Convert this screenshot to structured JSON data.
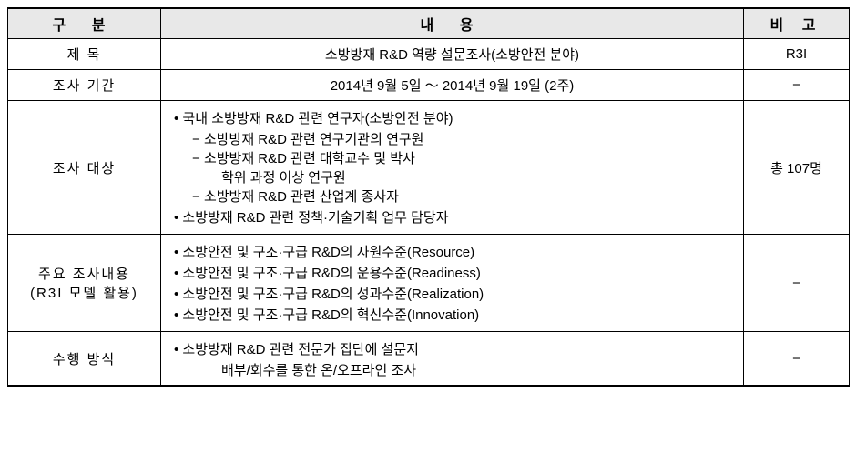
{
  "header": {
    "col1": "구 분",
    "col2": "내 용",
    "col3": "비 고"
  },
  "rows": [
    {
      "label": "제  목",
      "content_center": "소방방재 R&D 역량 설문조사(소방안전 분야)",
      "note": "R3I"
    },
    {
      "label": "조사 기간",
      "content_center": "2014년 9월 5일 ～ 2014년 9월 19일 (2주)",
      "note": "−"
    },
    {
      "label": "조사 대상",
      "bullets": [
        {
          "type": "bullet",
          "text": "국내 소방방재 R&D 관련 연구자(소방안전 분야)"
        },
        {
          "type": "sub",
          "text": "소방방재 R&D 관련 연구기관의 연구원"
        },
        {
          "type": "sub",
          "text": "소방방재 R&D 관련 대학교수 및 박사"
        },
        {
          "type": "subsub",
          "text": "학위 과정 이상 연구원"
        },
        {
          "type": "sub",
          "text": "소방방재 R&D 관련 산업계 종사자"
        },
        {
          "type": "bullet",
          "text": "소방방재 R&D 관련 정책·기술기획 업무 담당자"
        }
      ],
      "note": "총 107명"
    },
    {
      "label": "주요 조사내용\n(R3I 모델 활용)",
      "bullets": [
        {
          "type": "bullet",
          "text": "소방안전 및 구조·구급 R&D의 자원수준(Resource)"
        },
        {
          "type": "bullet",
          "text": "소방안전 및 구조·구급 R&D의 운용수준(Readiness)"
        },
        {
          "type": "bullet",
          "text": "소방안전 및 구조·구급 R&D의 성과수준(Realization)"
        },
        {
          "type": "bullet",
          "text": "소방안전 및 구조·구급 R&D의 혁신수준(Innovation)"
        }
      ],
      "note": "−"
    },
    {
      "label": "수행 방식",
      "bullets": [
        {
          "type": "bullet",
          "text": "소방방재 R&D 관련 전문가 집단에 설문지"
        },
        {
          "type": "subsub",
          "text": "배부/회수를 통한 온/오프라인 조사"
        }
      ],
      "note": "−"
    }
  ]
}
